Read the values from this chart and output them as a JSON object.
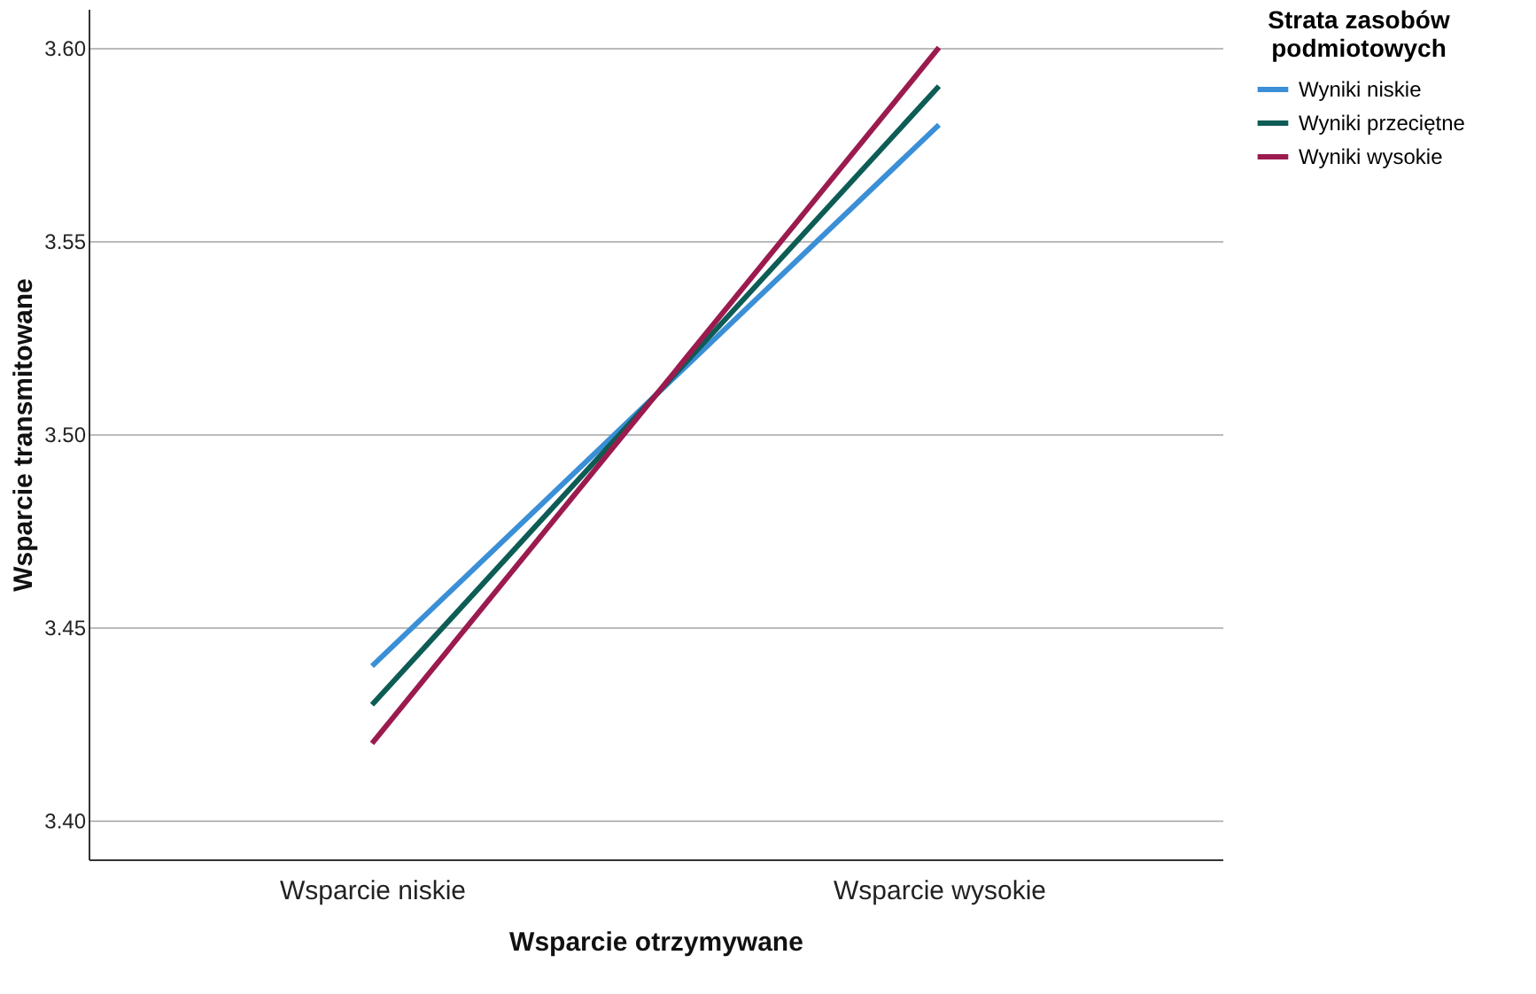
{
  "chart_data": {
    "type": "line",
    "xlabel": "Wsparcie otrzymywane",
    "ylabel": "Wsparcie transmitowane",
    "legend_title": "Strata zasobów podmiotowych",
    "categories": [
      "Wsparcie niskie",
      "Wsparcie wysokie"
    ],
    "series": [
      {
        "name": "Wyniki niskie",
        "color": "#3a8fd6",
        "values": [
          3.44,
          3.58
        ]
      },
      {
        "name": "Wyniki przeciętne",
        "color": "#0d5c55",
        "values": [
          3.43,
          3.59
        ]
      },
      {
        "name": "Wyniki wysokie",
        "color": "#9b1b4f",
        "values": [
          3.42,
          3.6
        ]
      }
    ],
    "ylim": [
      3.39,
      3.61
    ],
    "yticks": [
      {
        "value": 3.4,
        "label": "3.40"
      },
      {
        "value": 3.45,
        "label": "3.45"
      },
      {
        "value": 3.5,
        "label": "3.50"
      },
      {
        "value": 3.55,
        "label": "3.55"
      },
      {
        "value": 3.6,
        "label": "3.60"
      }
    ],
    "grid": "y",
    "legend": "top right",
    "marker": "none",
    "line_style": "solid"
  }
}
